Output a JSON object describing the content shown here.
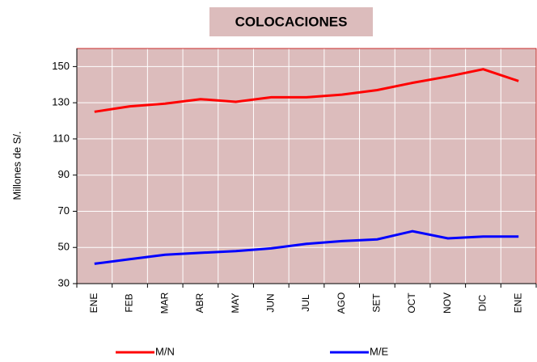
{
  "chart_data": {
    "type": "line",
    "title": "COLOCACIONES",
    "y_label": "Millones de S/.",
    "categories": [
      "ENE",
      "FEB",
      "MAR",
      "ABR",
      "MAY",
      "JUN",
      "JUL",
      "AGO",
      "SET",
      "OCT",
      "NOV",
      "DIC",
      "ENE"
    ],
    "series": [
      {
        "name": "M/N",
        "color": "#ff0000",
        "values": [
          125,
          128,
          129.5,
          132,
          130.5,
          133,
          133,
          134.5,
          137,
          141,
          144.5,
          148.5,
          142
        ]
      },
      {
        "name": "M/E",
        "color": "#0000ff",
        "values": [
          41,
          43.5,
          46,
          47,
          48,
          49.5,
          52,
          53.5,
          54.5,
          59,
          55,
          56,
          56
        ]
      }
    ],
    "ylim": [
      30,
      160
    ],
    "yticks": [
      30,
      50,
      70,
      90,
      110,
      130,
      150
    ],
    "grid": true
  }
}
